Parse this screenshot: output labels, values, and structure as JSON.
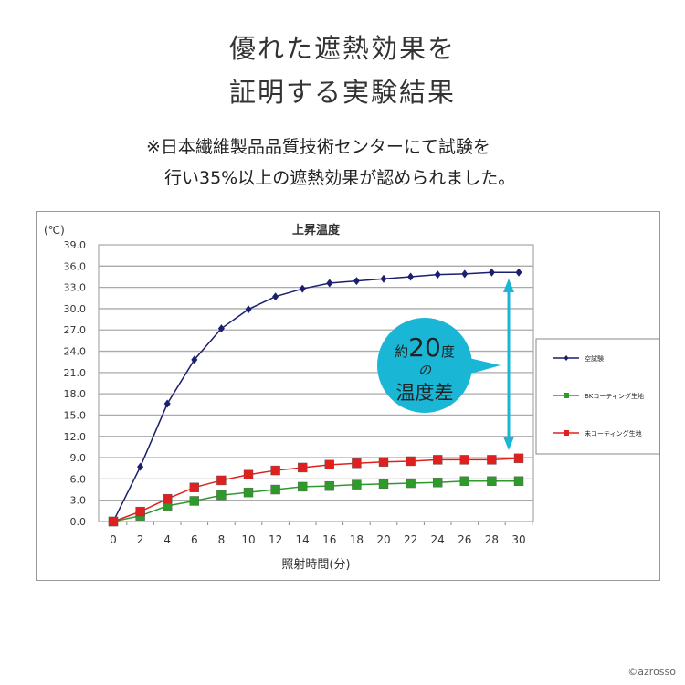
{
  "header": {
    "title_line1": "優れた遮熱効果を",
    "title_line2": "証明する実験結果",
    "note_line1": "※日本繊維製品品質技術センターにて試験を",
    "note_line2": "行い35%以上の遮熱効果が認められました。"
  },
  "chart_data": {
    "type": "line",
    "title": "上昇温度",
    "ylabel": "(℃)",
    "xlabel": "照射時間(分)",
    "ylim": [
      0,
      39
    ],
    "yticks": [
      "0.0",
      "3.0",
      "6.0",
      "9.0",
      "12.0",
      "15.0",
      "18.0",
      "21.0",
      "24.0",
      "27.0",
      "30.0",
      "33.0",
      "36.0",
      "39.0"
    ],
    "x": [
      0,
      2,
      4,
      6,
      8,
      10,
      12,
      14,
      16,
      18,
      20,
      22,
      24,
      26,
      28,
      30
    ],
    "grid": true,
    "legend_position": "right",
    "series": [
      {
        "name": "空試験",
        "color": "#1a1f6e",
        "marker": "diamond",
        "values": [
          0,
          7.7,
          16.6,
          22.8,
          27.2,
          29.9,
          31.7,
          32.8,
          33.6,
          33.9,
          34.2,
          34.5,
          34.8,
          34.9,
          35.1,
          35.1
        ]
      },
      {
        "name": "BKコーティング生地",
        "color": "#2e9a2a",
        "marker": "square",
        "values": [
          0,
          0.8,
          2.2,
          2.9,
          3.7,
          4.1,
          4.5,
          4.9,
          5.0,
          5.2,
          5.3,
          5.4,
          5.5,
          5.7,
          5.7,
          5.7
        ]
      },
      {
        "name": "未コーティング生地",
        "color": "#e0201e",
        "marker": "square",
        "values": [
          0,
          1.4,
          3.2,
          4.8,
          5.8,
          6.6,
          7.2,
          7.6,
          8.0,
          8.2,
          8.4,
          8.5,
          8.7,
          8.7,
          8.7,
          8.9
        ]
      }
    ],
    "annotation": {
      "prefix": "約",
      "number": "20",
      "suffix": "度",
      "line2": "の",
      "line3": "温度差",
      "color": "#1ab6d6"
    }
  },
  "footer": {
    "copyright": "©azrosso"
  }
}
